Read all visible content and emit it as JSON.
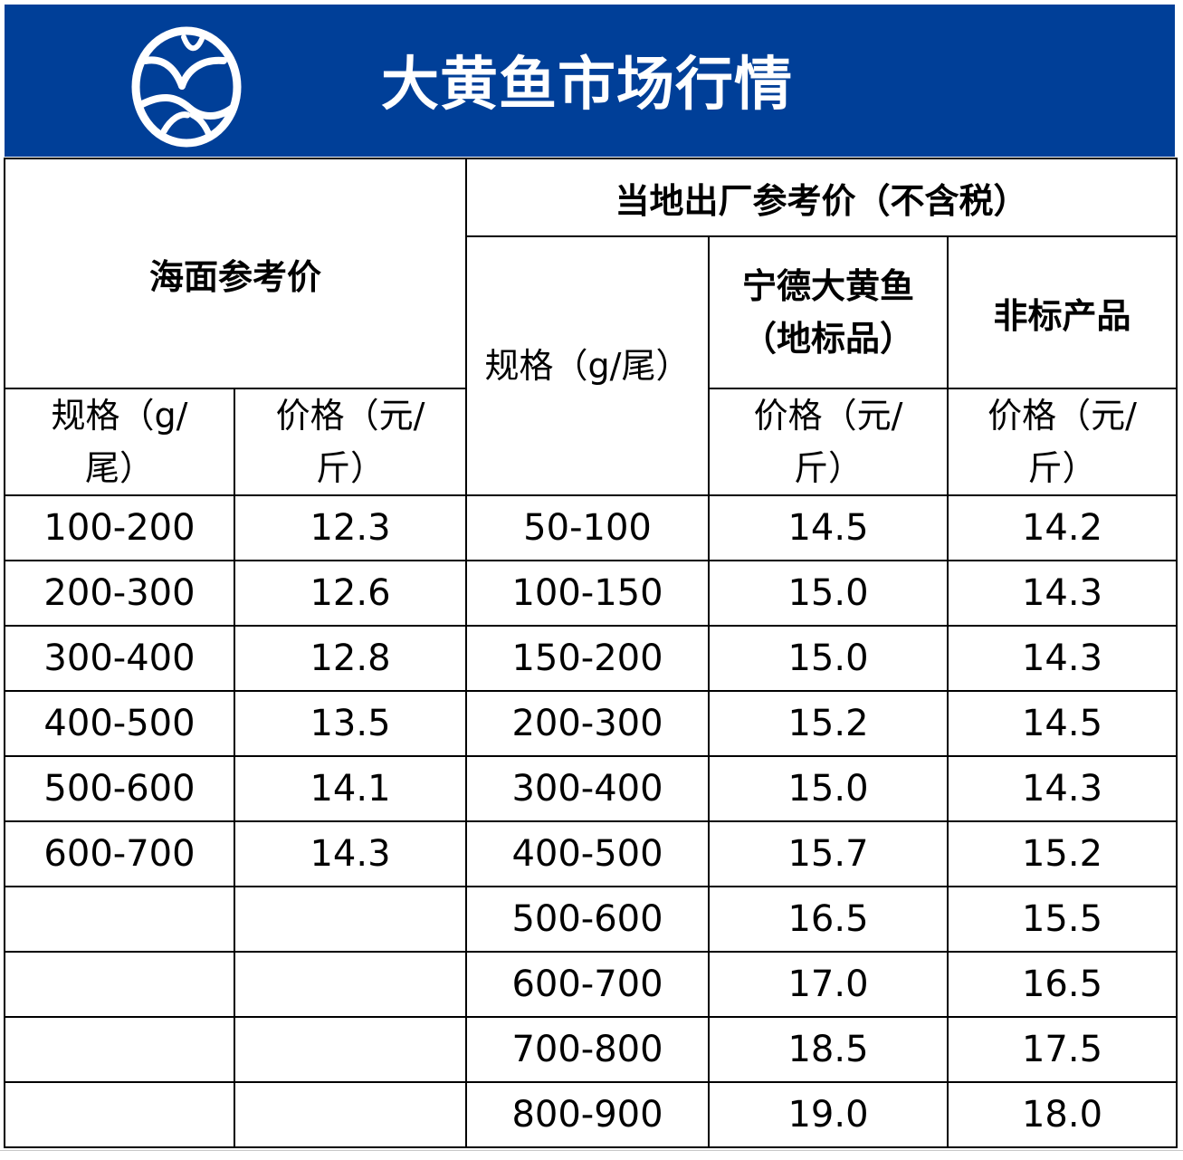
{
  "header": {
    "title": "大黄鱼市场行情",
    "background_color": "#003f98",
    "logo_icon": "fish-circle-logo-icon"
  },
  "table": {
    "sea_group_label": "海面参考价",
    "factory_group_label": "当地出厂参考价（不含税）",
    "sea_spec_label": "规格（g/尾）",
    "sea_price_label": "价格（元/斤）",
    "factory_spec_label": "规格（g/尾）",
    "ningde_label": "宁德大黄鱼（地标品）",
    "ningde_price_label": "价格（元/斤）",
    "nonstd_label": "非标产品",
    "nonstd_price_label": "价格（元/斤）",
    "rows": [
      {
        "sea_spec": "100-200",
        "sea_price": "12.3",
        "factory_spec": "50-100",
        "ningde_price": "14.5",
        "nonstd_price": "14.2"
      },
      {
        "sea_spec": "200-300",
        "sea_price": "12.6",
        "factory_spec": "100-150",
        "ningde_price": "15.0",
        "nonstd_price": "14.3"
      },
      {
        "sea_spec": "300-400",
        "sea_price": "12.8",
        "factory_spec": "150-200",
        "ningde_price": "15.0",
        "nonstd_price": "14.3"
      },
      {
        "sea_spec": "400-500",
        "sea_price": "13.5",
        "factory_spec": "200-300",
        "ningde_price": "15.2",
        "nonstd_price": "14.5"
      },
      {
        "sea_spec": "500-600",
        "sea_price": "14.1",
        "factory_spec": "300-400",
        "ningde_price": "15.0",
        "nonstd_price": "14.3"
      },
      {
        "sea_spec": "600-700",
        "sea_price": "14.3",
        "factory_spec": "400-500",
        "ningde_price": "15.7",
        "nonstd_price": "15.2"
      },
      {
        "sea_spec": "",
        "sea_price": "",
        "factory_spec": "500-600",
        "ningde_price": "16.5",
        "nonstd_price": "15.5"
      },
      {
        "sea_spec": "",
        "sea_price": "",
        "factory_spec": "600-700",
        "ningde_price": "17.0",
        "nonstd_price": "16.5"
      },
      {
        "sea_spec": "",
        "sea_price": "",
        "factory_spec": "700-800",
        "ningde_price": "18.5",
        "nonstd_price": "17.5"
      },
      {
        "sea_spec": "",
        "sea_price": "",
        "factory_spec": "800-900",
        "ningde_price": "19.0",
        "nonstd_price": "18.0"
      }
    ]
  }
}
